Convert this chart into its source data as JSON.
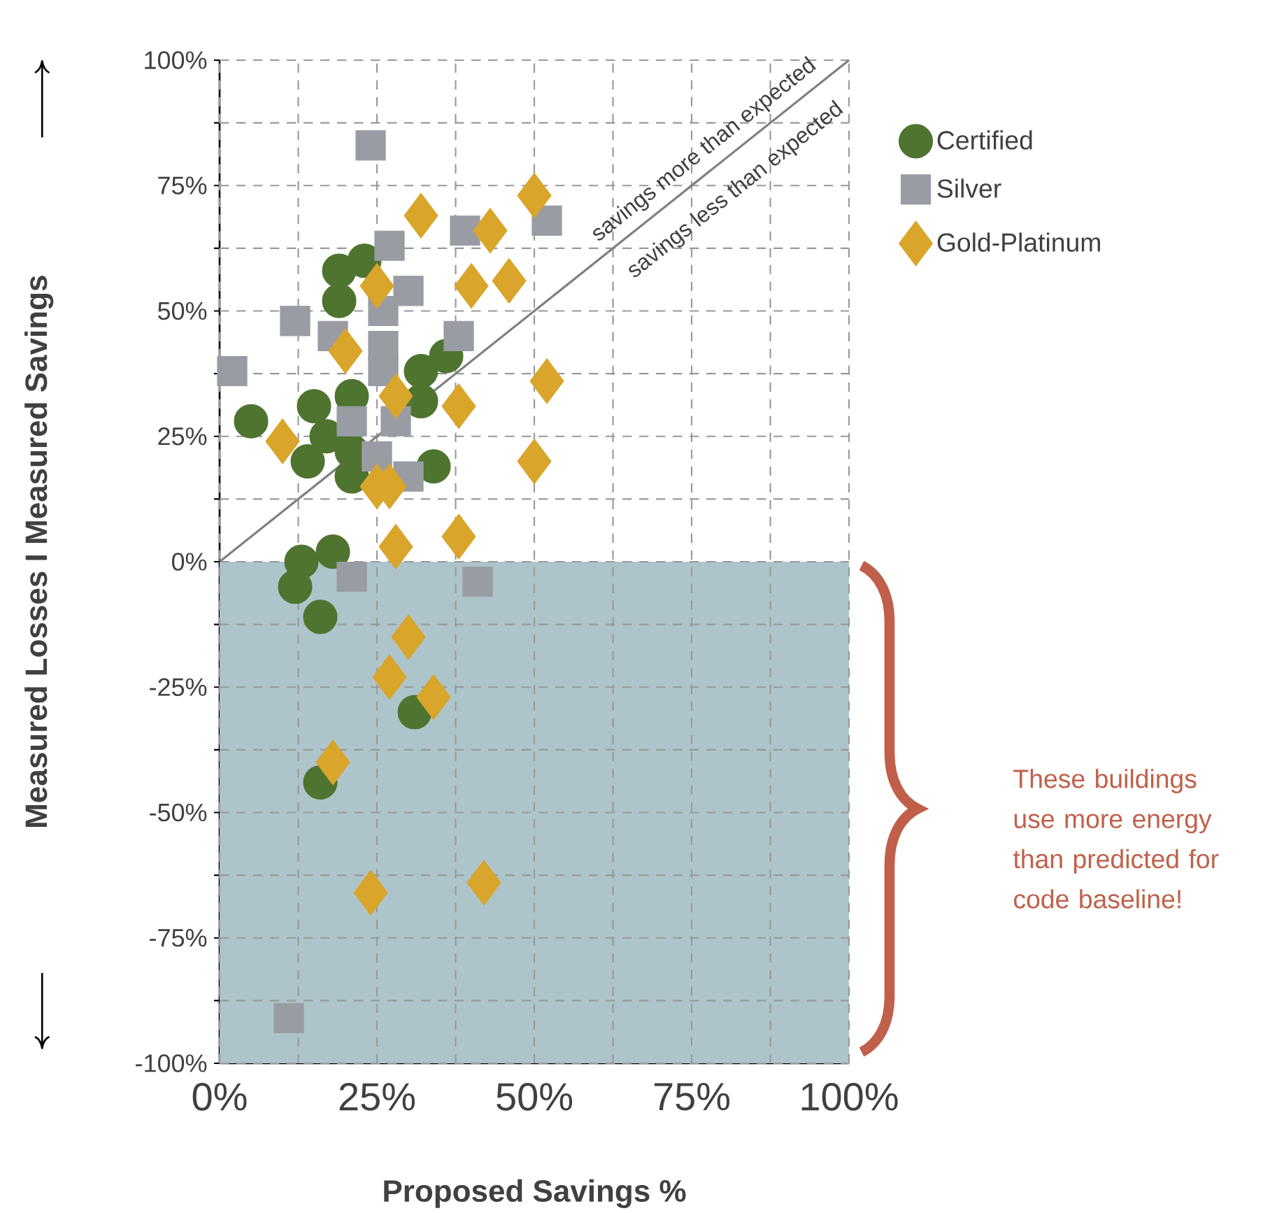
{
  "chart_data": {
    "type": "scatter",
    "xlabel": "Proposed Savings %",
    "ylabel": "Measured Losses I Measured Savings",
    "xlim": [
      0,
      100
    ],
    "ylim": [
      -100,
      100
    ],
    "xticks": [
      {
        "value": 0,
        "label": "0%"
      },
      {
        "value": 12.5,
        "label": null
      },
      {
        "value": 25,
        "label": "25%"
      },
      {
        "value": 37.5,
        "label": null
      },
      {
        "value": 50,
        "label": "50%"
      },
      {
        "value": 62.5,
        "label": null
      },
      {
        "value": 75,
        "label": "75%"
      },
      {
        "value": 87.5,
        "label": null
      },
      {
        "value": 100,
        "label": "100%"
      }
    ],
    "yticks": [
      {
        "value": -100,
        "label": "-100%"
      },
      {
        "value": -87.5,
        "label": null
      },
      {
        "value": -75,
        "label": "-75%"
      },
      {
        "value": -62.5,
        "label": null
      },
      {
        "value": -50,
        "label": "-50%"
      },
      {
        "value": -37.5,
        "label": null
      },
      {
        "value": -25,
        "label": "-25%"
      },
      {
        "value": -12.5,
        "label": null
      },
      {
        "value": 0,
        "label": "0%"
      },
      {
        "value": 12.5,
        "label": null
      },
      {
        "value": 25,
        "label": "25%"
      },
      {
        "value": 37.5,
        "label": null
      },
      {
        "value": 50,
        "label": "50%"
      },
      {
        "value": 62.5,
        "label": null
      },
      {
        "value": 75,
        "label": "75%"
      },
      {
        "value": 87.5,
        "label": null
      },
      {
        "value": 100,
        "label": "100%"
      }
    ],
    "grid": true,
    "legend": "top right",
    "bands": [
      {
        "axis": "y",
        "from": -100,
        "to": 0,
        "color": "#adc5ca"
      }
    ],
    "annotations": [
      "savings more than expected",
      "savings less than expected",
      "These buildings use more energy than predicted for code baseline!"
    ],
    "series": [
      {
        "name": "Certified",
        "color": "#4e7430",
        "marker": "circle",
        "x": [
          5,
          15,
          17,
          14,
          19,
          19,
          23,
          21,
          21,
          21,
          32,
          32,
          36,
          34,
          13,
          18,
          12,
          16,
          31,
          16
        ],
        "values": [
          28,
          31,
          25,
          20,
          58,
          52,
          60,
          33,
          22,
          17,
          38,
          32,
          41,
          19,
          0,
          2,
          -5,
          -11,
          -30,
          -44
        ]
      },
      {
        "name": "Silver",
        "color": "#9a9ca4",
        "marker": "square",
        "x": [
          24,
          2,
          12,
          18,
          27,
          26,
          26,
          26,
          21,
          25,
          28,
          30,
          30,
          39,
          52,
          38,
          21,
          41,
          11
        ],
        "values": [
          83,
          38,
          48,
          45,
          63,
          50,
          43,
          38,
          28,
          21,
          28,
          17,
          54,
          66,
          68,
          45,
          -3,
          -4,
          -91
        ]
      },
      {
        "name": "Gold-Platinum",
        "color": "#d9a52a",
        "marker": "diamond",
        "x": [
          32,
          43,
          50,
          40,
          46,
          25,
          20,
          28,
          38,
          52,
          50,
          10,
          25,
          27,
          28,
          38,
          30,
          27,
          34,
          18,
          24,
          42
        ],
        "values": [
          69,
          66,
          73,
          55,
          56,
          55,
          42,
          33,
          31,
          36,
          20,
          24,
          15,
          15,
          3,
          5,
          -15,
          -23,
          -27,
          -40,
          -66,
          -64
        ]
      },
      {
        "type": "line",
        "color": "#808080",
        "marker": "none",
        "x": [
          0,
          100
        ],
        "values": [
          0,
          100
        ]
      }
    ]
  }
}
